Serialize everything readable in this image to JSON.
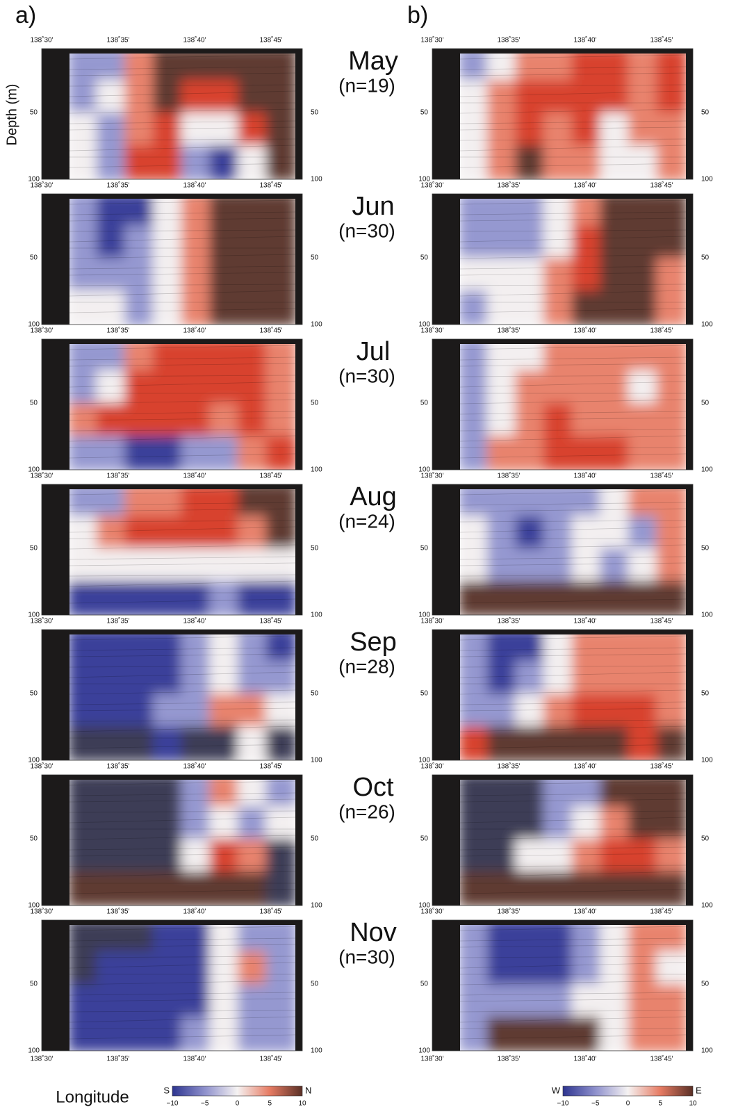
{
  "panel_labels": [
    "a)",
    "b)"
  ],
  "y_axis_label": "Depth (m)",
  "x_axis_label": "Longitude",
  "x_ticks": [
    "138˚30'",
    "138˚35'",
    "138˚40'",
    "138˚45'"
  ],
  "y_ticks": [
    "50",
    "100"
  ],
  "months": [
    {
      "name": "May",
      "n": "(n=19)"
    },
    {
      "name": "Jun",
      "n": "(n=30)"
    },
    {
      "name": "Jul",
      "n": "(n=30)"
    },
    {
      "name": "Aug",
      "n": "(n=24)"
    },
    {
      "name": "Sep",
      "n": "(n=28)"
    },
    {
      "name": "Oct",
      "n": "(n=26)"
    },
    {
      "name": "Nov",
      "n": "(n=30)"
    }
  ],
  "colorbars": [
    {
      "low": "S",
      "high": "N",
      "ticks": [
        "−10",
        "−5",
        "0",
        "5",
        "10"
      ]
    },
    {
      "low": "W",
      "high": "E",
      "ticks": [
        "−10",
        "−5",
        "0",
        "5",
        "10"
      ]
    }
  ]
}
